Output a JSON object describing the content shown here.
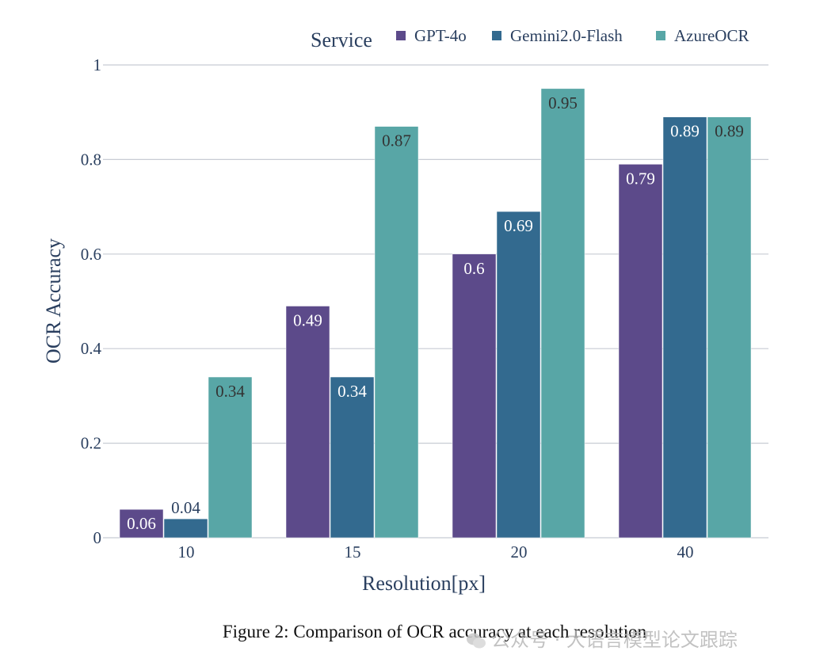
{
  "chart_data": {
    "type": "bar",
    "categories": [
      "10",
      "15",
      "20",
      "40"
    ],
    "series": [
      {
        "name": "GPT-4o",
        "color": "#5c4a8a",
        "values": [
          0.06,
          0.49,
          0.6,
          0.79
        ],
        "labels": [
          "0.06",
          "0.49",
          "0.6",
          "0.79"
        ]
      },
      {
        "name": "Gemini2.0-Flash",
        "color": "#336a8f",
        "values": [
          0.04,
          0.34,
          0.69,
          0.89
        ],
        "labels": [
          "0.04",
          "0.34",
          "0.69",
          "0.89"
        ]
      },
      {
        "name": "AzureOCR",
        "color": "#58a6a6",
        "values": [
          0.34,
          0.87,
          0.95,
          0.89
        ],
        "labels": [
          "0.34",
          "0.87",
          "0.95",
          "0.89"
        ]
      }
    ],
    "title": "",
    "xlabel": "Resolution[px]",
    "ylabel": "OCR Accuracy",
    "ylim": [
      0,
      1
    ],
    "yticks": [
      0,
      0.2,
      0.4,
      0.6,
      0.8,
      1
    ],
    "ytick_labels": [
      "0",
      "0.2",
      "0.4",
      "0.6",
      "0.8",
      "1"
    ],
    "legend_title": "Service",
    "legend_position": "top-right",
    "grid": true
  },
  "caption": "Figure 2: Comparison of OCR accuracy at each resolution",
  "watermark": "公众号 · 大语言模型论文跟踪"
}
